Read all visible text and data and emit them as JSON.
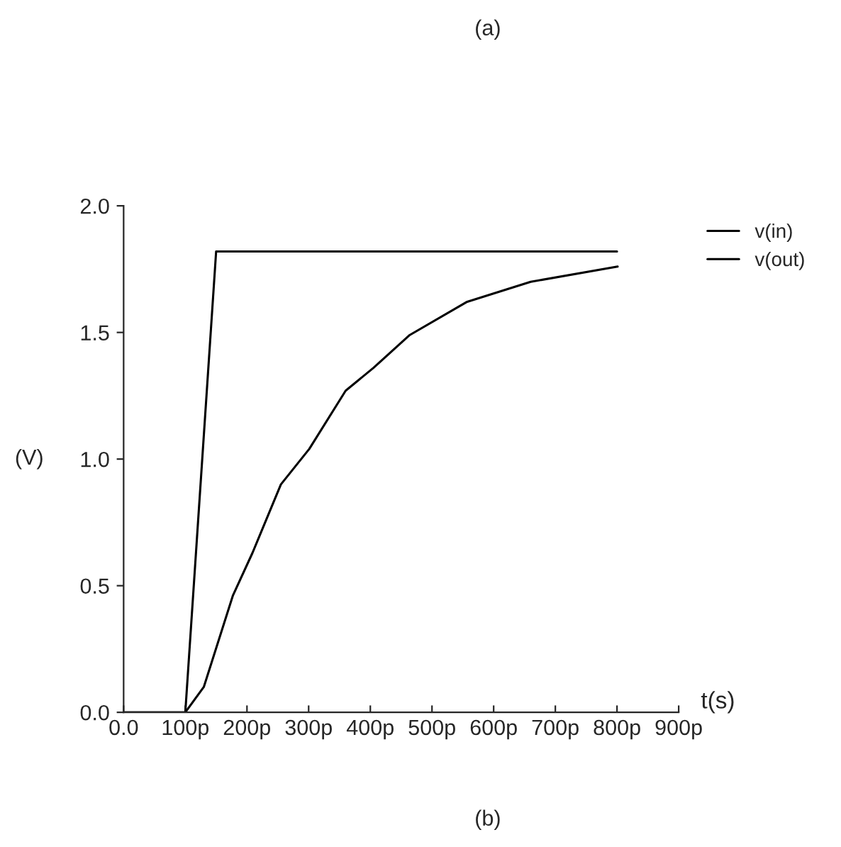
{
  "chart_data": {
    "type": "line",
    "title": "(a)",
    "xlabel": "t(s)",
    "ylabel": "(V)",
    "annotations": [
      "(b)"
    ],
    "xlim": [
      0,
      900
    ],
    "ylim": [
      0,
      2.0
    ],
    "xticks": [
      {
        "value": 0,
        "label": "0.0"
      },
      {
        "value": 100,
        "label": "100p"
      },
      {
        "value": 200,
        "label": "200p"
      },
      {
        "value": 300,
        "label": "300p"
      },
      {
        "value": 400,
        "label": "400p"
      },
      {
        "value": 500,
        "label": "500p"
      },
      {
        "value": 600,
        "label": "600p"
      },
      {
        "value": 700,
        "label": "700p"
      },
      {
        "value": 800,
        "label": "800p"
      },
      {
        "value": 900,
        "label": "900p"
      }
    ],
    "yticks": [
      {
        "value": 0,
        "label": "0.0"
      },
      0.5,
      {
        "value": 1.0,
        "label": "1.0"
      },
      1.5,
      {
        "value": 2.0,
        "label": "2.0"
      }
    ],
    "grid": false,
    "legend": "top right",
    "marker": "none",
    "line_style": "solid",
    "series": [
      {
        "name": "v(in)",
        "color": "#000000",
        "x": [
          0,
          100,
          150,
          800
        ],
        "values": [
          0,
          0,
          1.82,
          1.82
        ]
      },
      {
        "name": "v(out)",
        "color": "#000000",
        "x": [
          0,
          100,
          130,
          177,
          209,
          255,
          301,
          360,
          405,
          464,
          556,
          660,
          801
        ],
        "values": [
          0,
          0,
          0.1,
          0.46,
          0.63,
          0.9,
          1.04,
          1.27,
          1.36,
          1.49,
          1.62,
          1.7,
          1.76
        ]
      }
    ]
  }
}
